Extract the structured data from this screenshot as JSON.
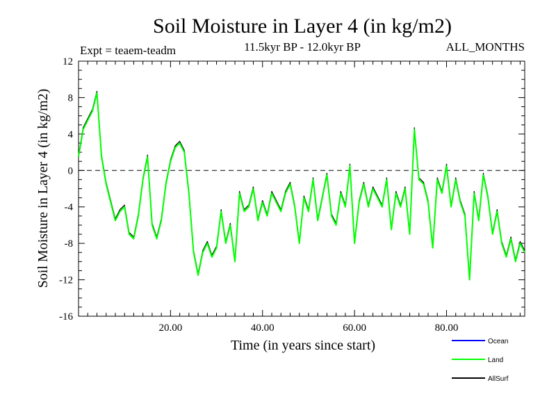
{
  "chart_data": {
    "type": "line",
    "title": "Soil Moisture in Layer 4 (in kg/m2)",
    "subtitle": "11.5kyr BP - 12.0kyr BP",
    "experiment": "Expt = teaem-teadm",
    "season": "ALL_MONTHS",
    "xlabel": "Time (in years since start)",
    "ylabel": "Soil Moisture in Layer 4 (in kg/m2)",
    "xlim": [
      0,
      97
    ],
    "ylim": [
      -16,
      12
    ],
    "x_ticks": [
      20,
      40,
      60,
      80
    ],
    "x_tick_labels": [
      "20.00",
      "40.00",
      "60.00",
      "80.00"
    ],
    "y_ticks": [
      12,
      8,
      4,
      0,
      -4,
      -8,
      -12,
      -16
    ],
    "y_tick_labels": [
      "12",
      "8",
      "4",
      "0",
      "-4",
      "-8",
      "-12",
      "-16"
    ],
    "zero_line": true,
    "legend": [
      {
        "name": "Ocean",
        "color": "#0000ff"
      },
      {
        "name": "Land",
        "color": "#00ff00"
      },
      {
        "name": "AllSurf",
        "color": "#000000"
      }
    ],
    "series": [
      {
        "name": "Land",
        "color": "#00ff00",
        "x": [
          0,
          1,
          2,
          3,
          4,
          5,
          6,
          7,
          8,
          9,
          10,
          11,
          12,
          13,
          14,
          15,
          16,
          17,
          18,
          19,
          20,
          21,
          22,
          23,
          24,
          25,
          26,
          27,
          28,
          29,
          30,
          31,
          32,
          33,
          34,
          35,
          36,
          37,
          38,
          39,
          40,
          41,
          42,
          43,
          44,
          45,
          46,
          47,
          48,
          49,
          50,
          51,
          52,
          53,
          54,
          55,
          56,
          57,
          58,
          59,
          60,
          61,
          62,
          63,
          64,
          65,
          66,
          67,
          68,
          69,
          70,
          71,
          72,
          73,
          74,
          75,
          76,
          77,
          78,
          79,
          80,
          81,
          82,
          83,
          84,
          85,
          86,
          87,
          88,
          89,
          90,
          91,
          92,
          93,
          94,
          95,
          96,
          97
        ],
        "values": [
          1.5,
          4.5,
          5.5,
          6.5,
          8.5,
          1.5,
          -1.5,
          -3.5,
          -5.5,
          -4.5,
          -4.0,
          -7.0,
          -7.5,
          -5.0,
          -1.0,
          1.5,
          -6.0,
          -7.5,
          -5.5,
          -1.5,
          1.0,
          2.5,
          3.0,
          2.0,
          -2.5,
          -9.0,
          -11.5,
          -9.0,
          -8.0,
          -9.5,
          -8.5,
          -4.5,
          -8.0,
          -6.0,
          -10.0,
          -2.5,
          -4.5,
          -4.0,
          -2.0,
          -5.5,
          -3.5,
          -5.0,
          -2.5,
          -3.5,
          -4.5,
          -2.5,
          -1.5,
          -4.0,
          -8.0,
          -3.0,
          -4.5,
          -1.0,
          -5.5,
          -3.0,
          -0.5,
          -5.0,
          -6.0,
          -2.5,
          -4.0,
          0.5,
          -8.0,
          -3.5,
          -1.5,
          -4.0,
          -2.0,
          -3.0,
          -4.0,
          -1.0,
          -6.5,
          -2.5,
          -4.0,
          -2.0,
          -7.0,
          4.5,
          -1.0,
          -1.5,
          -3.5,
          -8.5,
          -1.0,
          -2.5,
          0.5,
          -4.0,
          -1.0,
          -3.5,
          -5.0,
          -12.0,
          -2.5,
          -5.5,
          -0.5,
          -3.0,
          -7.0,
          -4.5,
          -8.0,
          -9.5,
          -7.5,
          -10.0,
          -8.0,
          -9.0
        ]
      },
      {
        "name": "AllSurf",
        "color": "#000000",
        "x": [
          0,
          1,
          2,
          3,
          4,
          5,
          6,
          7,
          8,
          9,
          10,
          11,
          12,
          13,
          14,
          15,
          16,
          17,
          18,
          19,
          20,
          21,
          22,
          23,
          24,
          25,
          26,
          27,
          28,
          29,
          30,
          31,
          32,
          33,
          34,
          35,
          36,
          37,
          38,
          39,
          40,
          41,
          42,
          43,
          44,
          45,
          46,
          47,
          48,
          49,
          50,
          51,
          52,
          53,
          54,
          55,
          56,
          57,
          58,
          59,
          60,
          61,
          62,
          63,
          64,
          65,
          66,
          67,
          68,
          69,
          70,
          71,
          72,
          73,
          74,
          75,
          76,
          77,
          78,
          79,
          80,
          81,
          82,
          83,
          84,
          85,
          86,
          87,
          88,
          89,
          90,
          91,
          92,
          93,
          94,
          95,
          96,
          97
        ],
        "values": [
          1.7,
          4.7,
          5.7,
          6.7,
          8.7,
          1.7,
          -1.3,
          -3.3,
          -5.3,
          -4.3,
          -3.8,
          -6.8,
          -7.3,
          -4.8,
          -0.8,
          1.7,
          -5.8,
          -7.3,
          -5.3,
          -1.3,
          1.2,
          2.7,
          3.2,
          2.2,
          -2.3,
          -8.8,
          -11.3,
          -8.8,
          -7.8,
          -9.3,
          -8.3,
          -4.3,
          -7.8,
          -5.8,
          -9.8,
          -2.3,
          -4.3,
          -3.8,
          -1.8,
          -5.3,
          -3.3,
          -4.8,
          -2.3,
          -3.3,
          -4.3,
          -2.3,
          -1.3,
          -3.8,
          -7.8,
          -2.8,
          -4.3,
          -0.8,
          -5.3,
          -2.8,
          -0.3,
          -4.8,
          -5.8,
          -2.3,
          -3.8,
          0.7,
          -7.8,
          -3.3,
          -1.3,
          -3.8,
          -1.8,
          -2.8,
          -3.8,
          -0.8,
          -6.3,
          -2.3,
          -3.8,
          -1.8,
          -6.8,
          4.7,
          -0.8,
          -1.3,
          -3.3,
          -8.3,
          -0.8,
          -2.3,
          0.7,
          -3.8,
          -0.8,
          -3.3,
          -4.8,
          -11.8,
          -2.3,
          -5.3,
          -0.3,
          -2.8,
          -6.8,
          -4.3,
          -7.8,
          -9.3,
          -7.3,
          -9.8,
          -7.8,
          -8.8
        ]
      },
      {
        "name": "Ocean",
        "color": "#0000ff",
        "x": [],
        "values": []
      }
    ]
  }
}
